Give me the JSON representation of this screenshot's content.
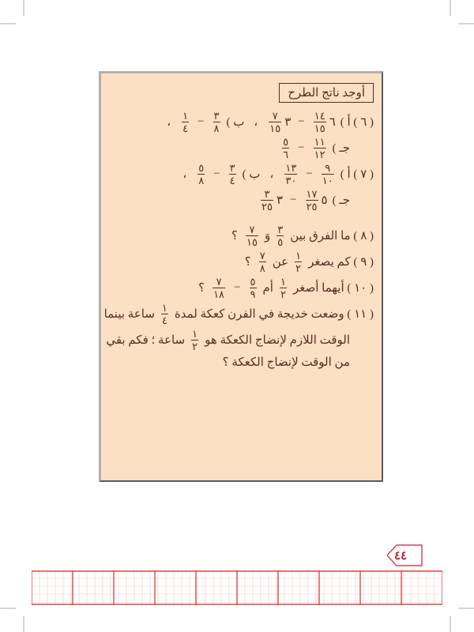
{
  "colors": {
    "panel_bg": "#fbe0c4",
    "text": "#5c2b22",
    "accent": "#c62039",
    "grid_minor": "#f2c6c6",
    "grid_major": "#d94a4a"
  },
  "page_number": "٤٤",
  "heading": "أوجد ناتج الطرح",
  "problems": {
    "p6": {
      "label": "( ٦ ) أ )",
      "a_f1n": "١٤",
      "a_f1d": "١٥",
      "a_f2n": "٧",
      "a_f2d": "١٥",
      "a_whole": "٦",
      "a_mix_whole": "٣",
      "sep_b": "ب )",
      "b_f1n": "٣",
      "b_f1d": "٨",
      "b_f2n": "١",
      "b_f2d": "٤",
      "c_label": "جـ )",
      "c_f1n": "١١",
      "c_f1d": "١٢",
      "c_f2n": "٥",
      "c_f2d": "٦"
    },
    "p7": {
      "label": "( ٧ ) أ )",
      "a_f1n": "٩",
      "a_f1d": "١٠",
      "a_f2n": "١٣",
      "a_f2d": "٣٠",
      "sep_b": "ب )",
      "b_f1n": "٣",
      "b_f1d": "٤",
      "b_f2n": "٥",
      "b_f2d": "٨",
      "c_label": "جـ )",
      "c_w1": "٥",
      "c_f1n": "١٧",
      "c_f1d": "٢٥",
      "c_w2": "٣",
      "c_f2n": "٣",
      "c_f2d": "٢٥"
    },
    "p8": {
      "label": "( ٨ ) ما الفرق بين",
      "f1n": "٣",
      "f1d": "٥",
      "and": "وَ",
      "f2n": "٧",
      "f2d": "١٥",
      "qm": "؟"
    },
    "p9": {
      "label": "( ٩ ) كم يصغر",
      "f1n": "١",
      "f1d": "٢",
      "about": "عن",
      "f2n": "٧",
      "f2d": "٨",
      "qm": "؟"
    },
    "p10": {
      "label": "( ١٠ ) أيهما أصغر",
      "f1n": "١",
      "f1d": "٢",
      "or": "أم",
      "f2n": "٥",
      "f2d": "٩",
      "minus": "−",
      "f3n": "٧",
      "f3d": "١٨",
      "qm": "؟"
    },
    "p11": {
      "line1a": "( ١١ ) وضعت خديجة في الفرن كعكة لمدة",
      "f1n": "١",
      "f1d": "٤",
      "line1b": "ساعة بينما",
      "line2a": "الوقت اللازم لإنضاج الكعكة هو",
      "f2n": "١",
      "f2d": "٢",
      "line2b": "ساعة ؛ فكم بقي",
      "line3": "من الوقت لإنضاج الكعكة ؟"
    }
  }
}
